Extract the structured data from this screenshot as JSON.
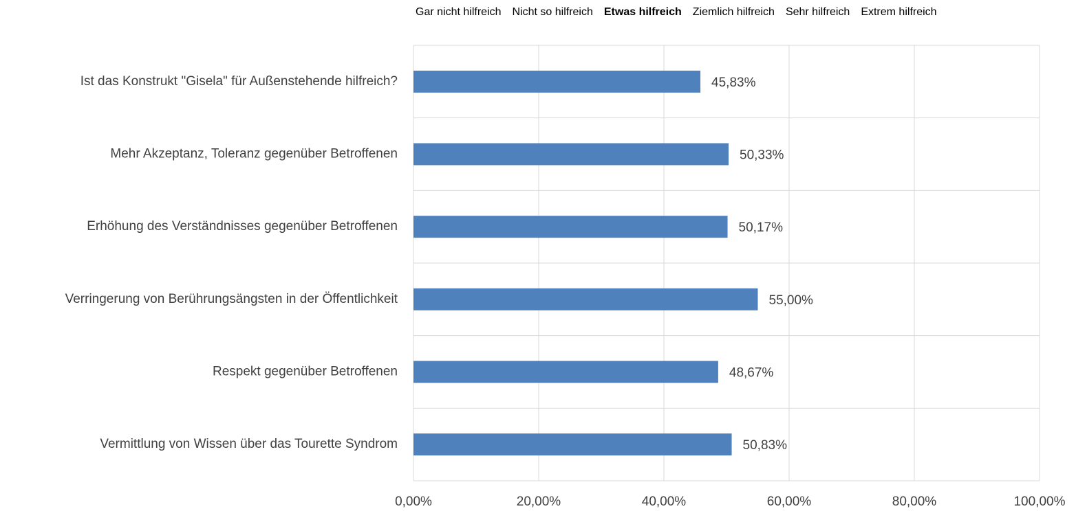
{
  "chart_data": {
    "type": "hbar",
    "scale_labels": [
      "Gar nicht hilfreich",
      "Nicht so hilfreich",
      "Etwas hilfreich",
      "Ziemlich hilfreich",
      "Sehr hilfreich",
      "Extrem hilfreich"
    ],
    "scale_highlight": 2,
    "categories": [
      "Ist das Konstrukt \"Gisela\" für Außenstehende hilfreich?",
      "Mehr Akzeptanz, Toleranz gegenüber Betroffenen",
      "Erhöhung des Verständnisses gegenüber Betroffenen",
      "Verringerung von Berührungsängsten in der Öffentlichkeit",
      "Respekt gegenüber Betroffenen",
      "Vermittlung von Wissen über das Tourette Syndrom"
    ],
    "values": [
      45.83,
      50.33,
      50.17,
      55.0,
      48.67,
      50.83
    ],
    "value_labels": [
      "45,83%",
      "50,33%",
      "50,17%",
      "55,00%",
      "48,67%",
      "50,83%"
    ],
    "color": "#4f81bd",
    "xlim": [
      0,
      100
    ],
    "xticks": [
      {
        "value": 0,
        "label": "0,00%"
      },
      {
        "value": 20,
        "label": "20,00%"
      },
      {
        "value": 40,
        "label": "40,00%"
      },
      {
        "value": 60,
        "label": "60,00%"
      },
      {
        "value": 80,
        "label": "80,00%"
      },
      {
        "value": 100,
        "label": "100,00%"
      }
    ],
    "grid": true
  }
}
